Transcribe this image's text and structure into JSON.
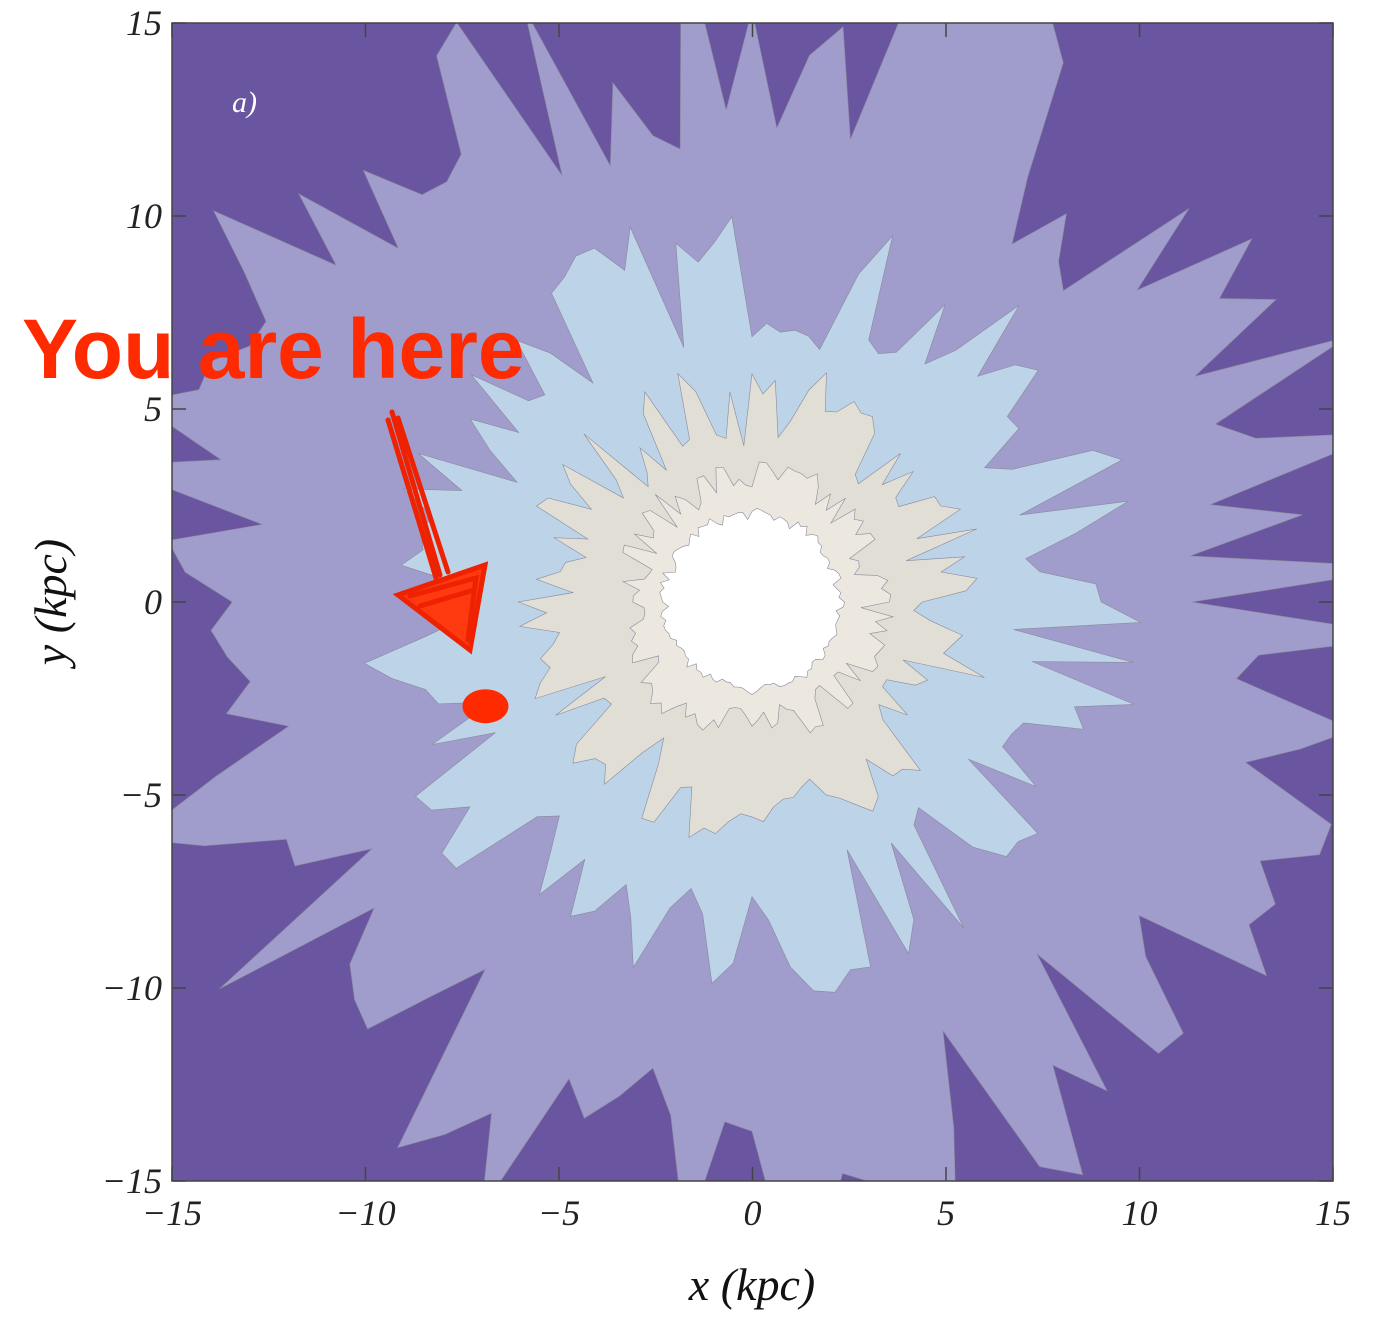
{
  "chart_data": {
    "type": "contour",
    "xlabel": "x  (kpc)",
    "ylabel": "y  (kpc)",
    "panel_label": "a)",
    "annotation": "You are here",
    "xlim": [
      -15,
      15
    ],
    "ylim": [
      -15,
      15
    ],
    "xticks": [
      {
        "value": -15,
        "label": "−15"
      },
      {
        "value": -10,
        "label": "−10"
      },
      {
        "value": -5,
        "label": "−5"
      },
      0,
      5,
      10,
      15
    ],
    "yticks": [
      {
        "value": -15,
        "label": "−15"
      },
      {
        "value": -10,
        "label": "−10"
      },
      {
        "value": -5,
        "label": "−5"
      },
      0,
      5,
      10,
      15
    ],
    "point": {
      "x": -6.9,
      "y": -2.7,
      "color": "#ff2a00"
    },
    "grid": false
  }
}
